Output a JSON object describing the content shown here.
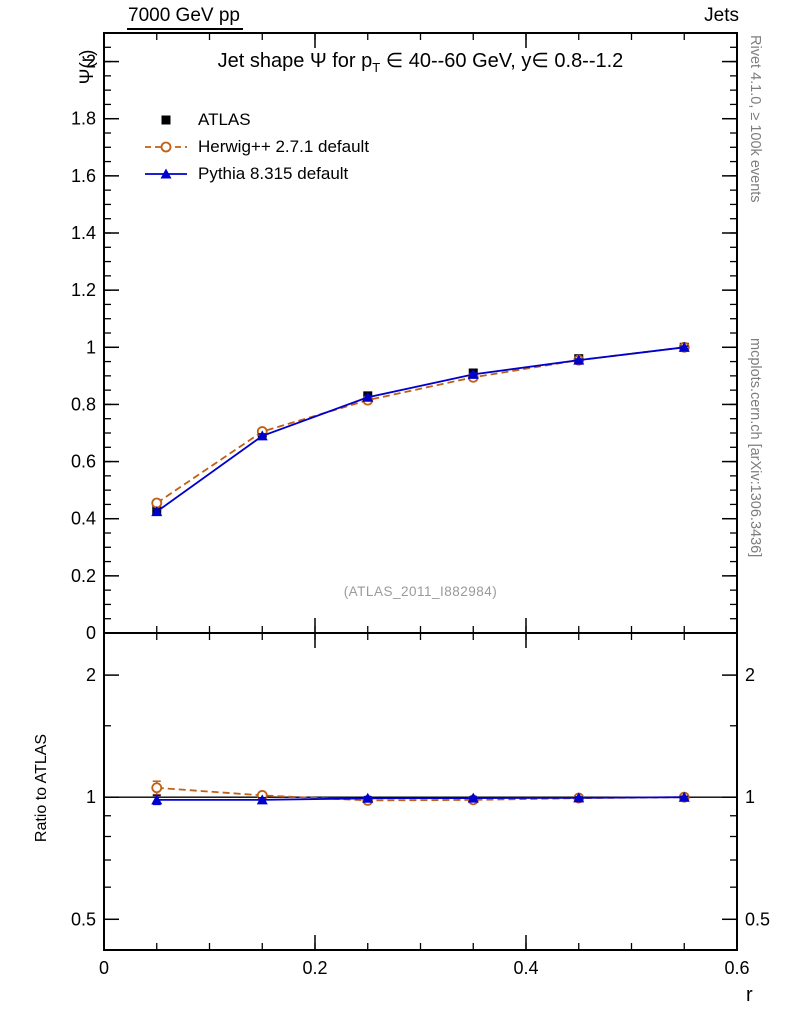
{
  "header": {
    "left": "7000 GeV pp",
    "right": "Jets"
  },
  "title": {
    "pre": "Jet shape Ψ for p",
    "sub": "T",
    "post": " ∈ 40--60 GeV, y∈ 0.8--1.2"
  },
  "watermark": "(ATLAS_2011_I882984)",
  "right_margin": {
    "top": "Rivet 4.1.0, ≥ 100k events",
    "bottom": "mcplots.cern.ch [arXiv:1306.3436]"
  },
  "axes": {
    "top_ylabel": "Ψ(r)",
    "bottom_ylabel": "Ratio to ATLAS",
    "xlabel": "r"
  },
  "chart_data": [
    {
      "type": "line",
      "panel": "main",
      "title": "Jet shape Ψ for p_T ∈ 40--60 GeV, y∈ 0.8--1.2",
      "xlabel": "r",
      "ylabel": "Ψ(r)",
      "xlim": [
        0,
        0.6
      ],
      "ylim": [
        0,
        2.1
      ],
      "yscale": "linear",
      "grid": false,
      "legend_position": "top-left",
      "xtick_labels": false,
      "ytick_labels_right": false,
      "xticks": {
        "major": [
          0,
          0.2,
          0.4,
          0.6
        ],
        "labels": [
          "0",
          "0.2",
          "0.4",
          "0.6"
        ],
        "minor_step": 0.05
      },
      "yticks": {
        "major": [
          0,
          0.2,
          0.4,
          0.6,
          0.8,
          1.0,
          1.2,
          1.4,
          1.6,
          1.8,
          2.0
        ],
        "labels": [
          "0",
          "0.2",
          "0.4",
          "0.6",
          "0.8",
          "1",
          "1.2",
          "1.4",
          "1.6",
          "1.8",
          "2"
        ],
        "minor_step": 0.05
      },
      "x": [
        0.05,
        0.15,
        0.25,
        0.35,
        0.45,
        0.55
      ],
      "series": [
        {
          "name": "ATLAS",
          "color": "#000000",
          "marker": "square",
          "line": "none",
          "values": [
            0.43,
            0.7,
            0.83,
            0.91,
            0.96,
            1.0
          ],
          "errors": [
            0.012,
            0.01,
            0.008,
            0.006,
            0.005,
            0.004
          ]
        },
        {
          "name": "Herwig++ 2.7.1 default",
          "color": "#c06014",
          "marker": "circle-open",
          "line": "dashed",
          "values": [
            0.455,
            0.705,
            0.815,
            0.895,
            0.955,
            1.0
          ],
          "errors": [
            0.01,
            0.008,
            0.007,
            0.006,
            0.005,
            0.004
          ]
        },
        {
          "name": "Pythia 8.315 default",
          "color": "#0000cd",
          "marker": "triangle",
          "line": "solid",
          "values": [
            0.425,
            0.69,
            0.825,
            0.905,
            0.955,
            1.0
          ],
          "errors": [
            0.008,
            0.007,
            0.006,
            0.005,
            0.004,
            0.004
          ]
        }
      ]
    },
    {
      "type": "line",
      "panel": "ratio",
      "title": "",
      "xlabel": "r",
      "ylabel": "Ratio to ATLAS",
      "xlim": [
        0,
        0.6
      ],
      "ylim": [
        0.42,
        2.54
      ],
      "yscale": "log",
      "grid": false,
      "reference_line": 1,
      "xtick_labels": true,
      "ytick_labels_right": true,
      "xticks": {
        "major": [
          0,
          0.2,
          0.4,
          0.6
        ],
        "labels": [
          "0",
          "0.2",
          "0.4",
          "0.6"
        ],
        "minor_step": 0.05
      },
      "yticks": {
        "major": [
          0.5,
          1,
          2
        ],
        "labels": [
          "0.5",
          "1",
          "2"
        ],
        "minor": [
          0.6,
          0.7,
          0.8,
          0.9,
          1.5
        ]
      },
      "x": [
        0.05,
        0.15,
        0.25,
        0.35,
        0.45,
        0.55
      ],
      "series": [
        {
          "name": "Herwig++ 2.7.1 default",
          "color": "#c06014",
          "marker": "circle-open",
          "line": "dashed",
          "values": [
            1.055,
            1.01,
            0.982,
            0.985,
            0.995,
            1.0
          ],
          "errors": [
            0.04,
            0.018,
            0.012,
            0.009,
            0.007,
            0.006
          ]
        },
        {
          "name": "Pythia 8.315 default",
          "color": "#0000cd",
          "marker": "triangle",
          "line": "solid",
          "values": [
            0.985,
            0.985,
            0.994,
            0.995,
            0.996,
            1.0
          ],
          "errors": [
            0.025,
            0.012,
            0.009,
            0.007,
            0.006,
            0.005
          ]
        }
      ]
    }
  ]
}
